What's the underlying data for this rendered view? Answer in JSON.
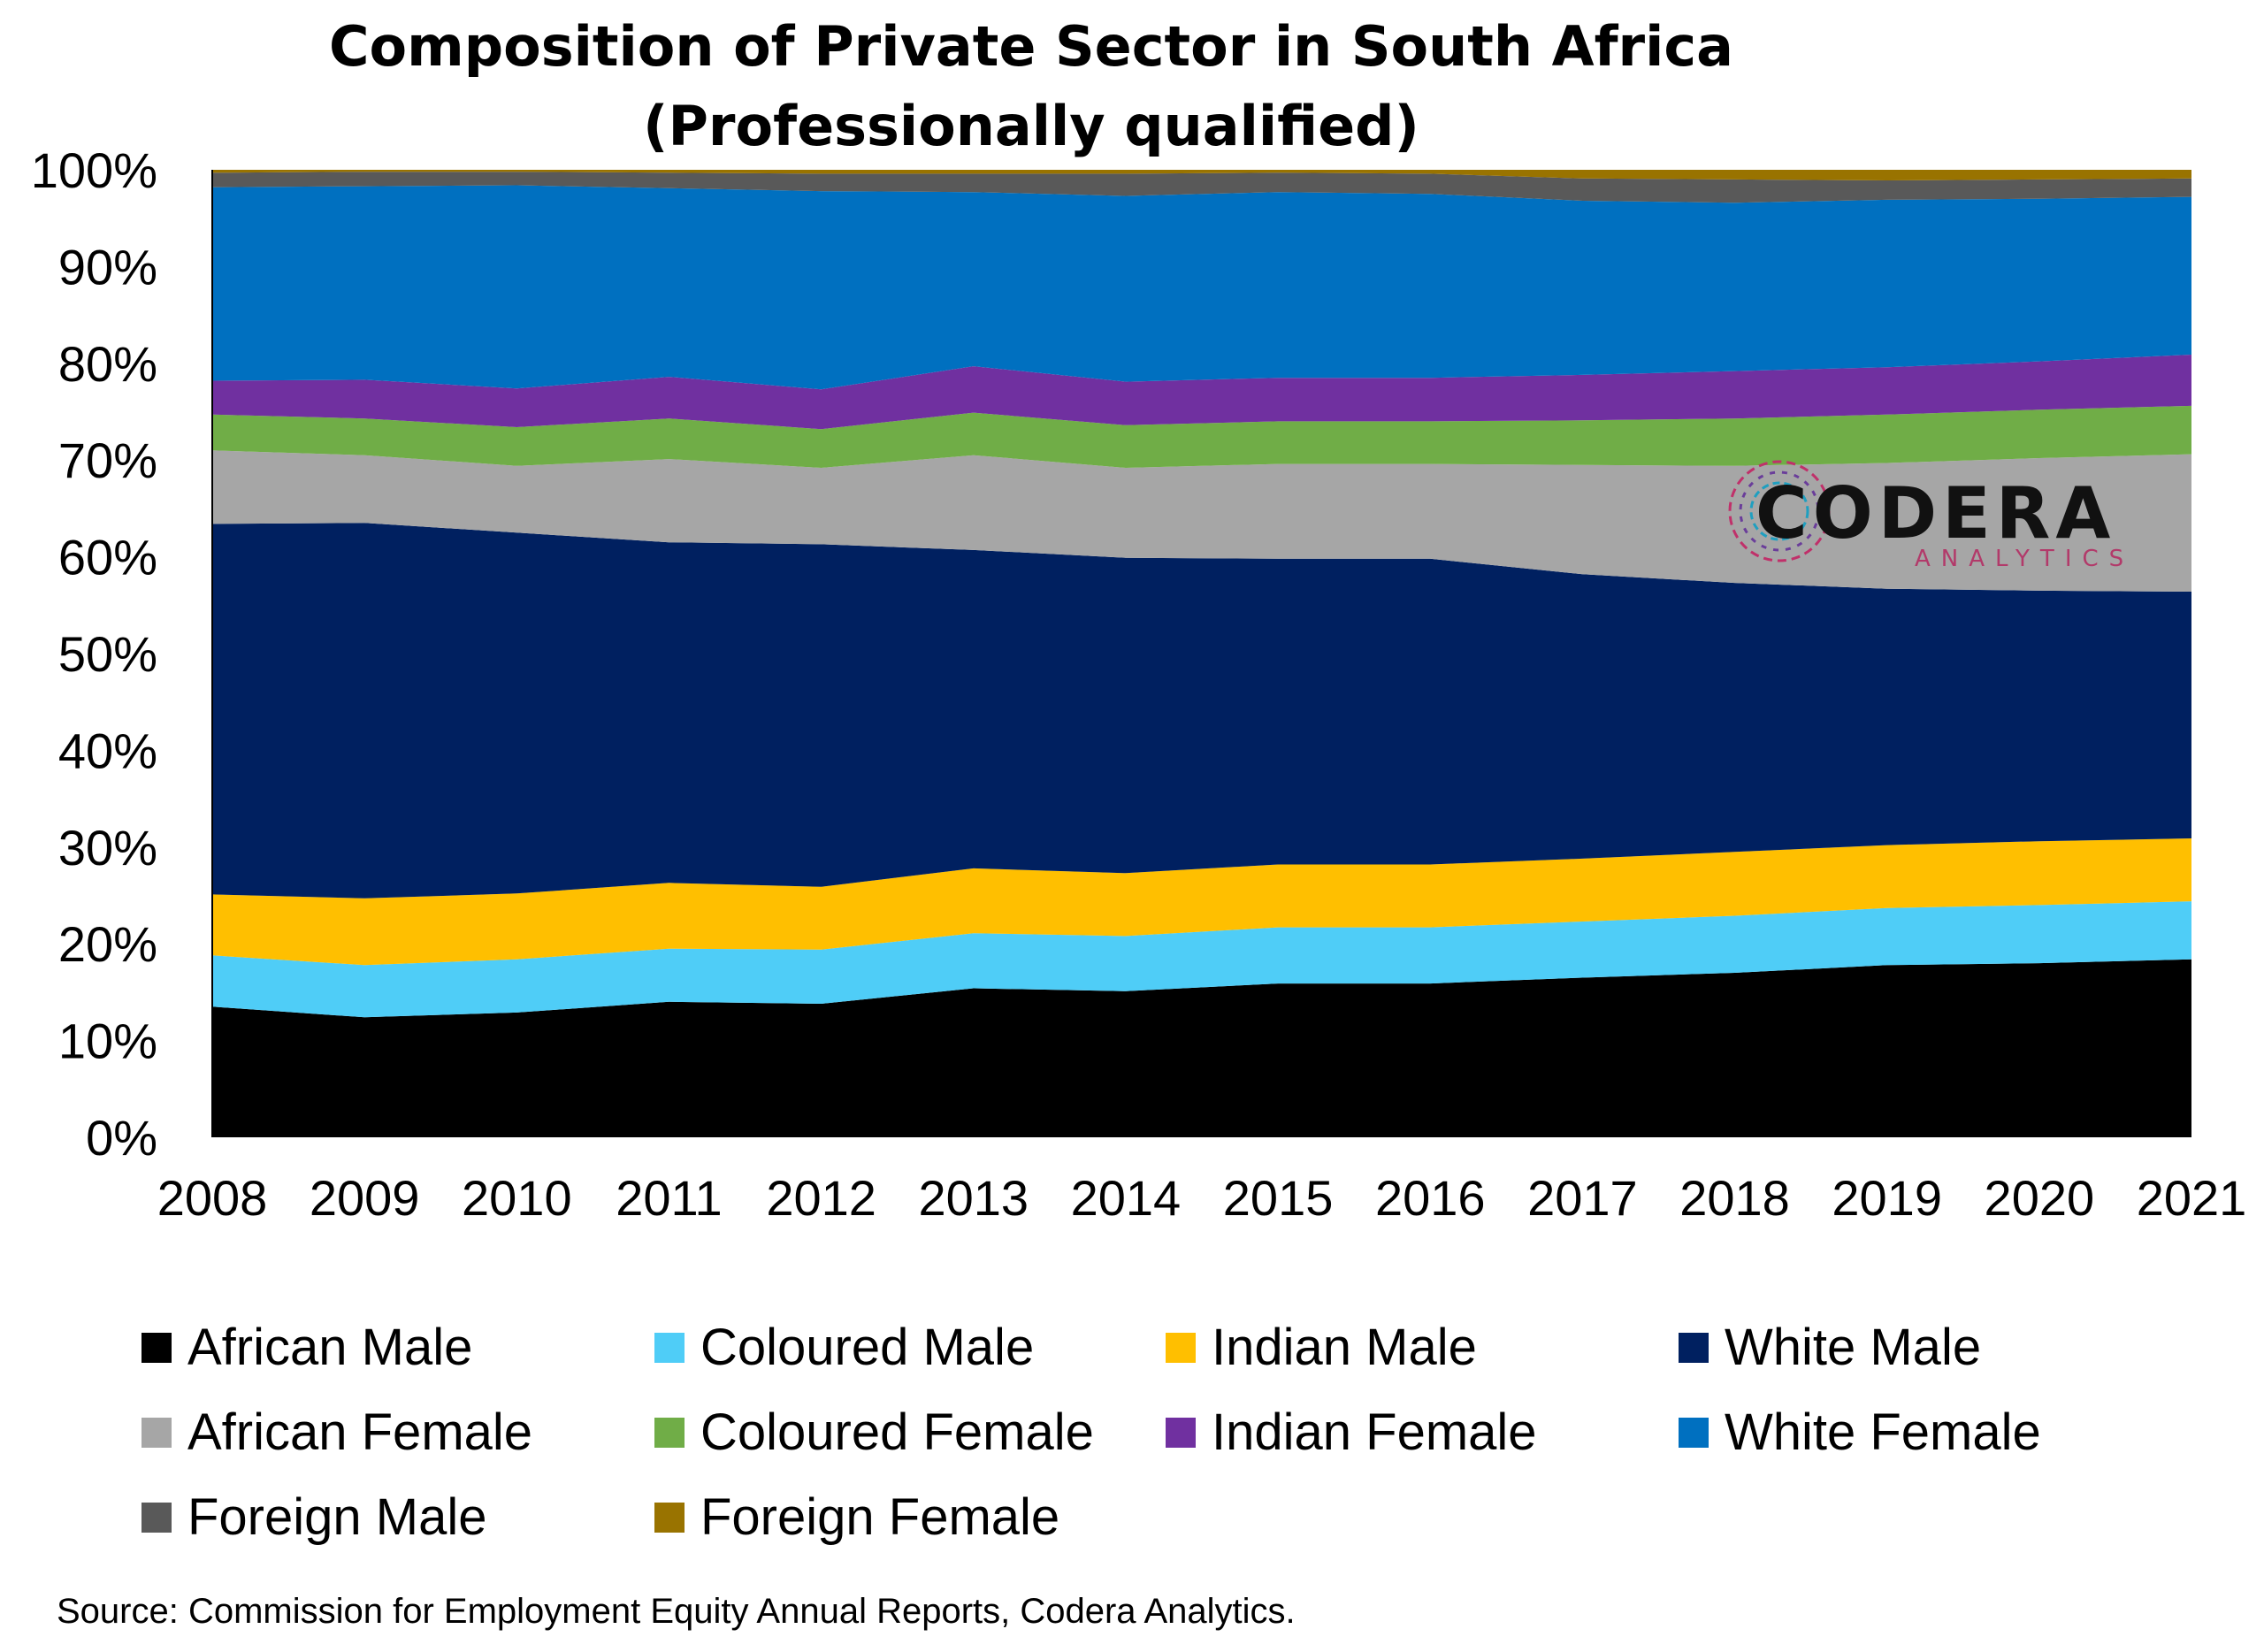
{
  "chart_data": {
    "type": "area",
    "stacked": true,
    "title": "Composition of Private Sector in South Africa",
    "subtitle": "(Professionally qualified)",
    "source": "Source: Commission for Employment Equity Annual Reports, Codera Analytics.",
    "x": [
      "2008",
      "2009",
      "2010",
      "2011",
      "2012",
      "2013",
      "2014",
      "2015",
      "2016",
      "2017",
      "2018",
      "2019",
      "2020",
      "2021"
    ],
    "ylim": [
      0,
      100
    ],
    "yticks": [
      "0%",
      "10%",
      "20%",
      "30%",
      "40%",
      "50%",
      "60%",
      "70%",
      "80%",
      "90%",
      "100%"
    ],
    "legend_position": "bottom",
    "logo": {
      "main": "CODERA",
      "sub": "ANALYTICS"
    },
    "series": [
      {
        "name": "African Male",
        "color": "#000000",
        "values": [
          13.5,
          12.4,
          12.9,
          14.0,
          13.8,
          15.4,
          15.1,
          15.9,
          15.9,
          16.5,
          17.0,
          17.8,
          18.0,
          18.4
        ]
      },
      {
        "name": "Coloured Male",
        "color": "#4fcdf7",
        "values": [
          5.3,
          5.4,
          5.5,
          5.5,
          5.6,
          5.7,
          5.7,
          5.8,
          5.8,
          5.8,
          5.9,
          5.9,
          6.0,
          6.0
        ]
      },
      {
        "name": "Indian Male",
        "color": "#ffbf00",
        "values": [
          6.3,
          6.9,
          6.8,
          6.8,
          6.5,
          6.7,
          6.5,
          6.5,
          6.5,
          6.5,
          6.6,
          6.5,
          6.6,
          6.5
        ]
      },
      {
        "name": "White Male",
        "color": "#002060",
        "values": [
          38.3,
          38.8,
          37.3,
          35.2,
          35.4,
          32.9,
          32.6,
          31.6,
          31.6,
          29.4,
          27.8,
          26.5,
          25.9,
          25.5
        ]
      },
      {
        "name": "African Female",
        "color": "#a6a6a6",
        "values": [
          7.6,
          7.0,
          6.9,
          8.6,
          7.9,
          9.8,
          9.3,
          9.8,
          9.8,
          11.3,
          12.1,
          13.0,
          13.7,
          14.2
        ]
      },
      {
        "name": "Coloured Female",
        "color": "#70ad47",
        "values": [
          3.7,
          3.8,
          4.0,
          4.2,
          4.0,
          4.4,
          4.4,
          4.4,
          4.4,
          4.6,
          4.9,
          5.0,
          5.0,
          5.0
        ]
      },
      {
        "name": "Indian Female",
        "color": "#7030a0",
        "values": [
          3.5,
          4.0,
          4.0,
          4.3,
          4.1,
          4.8,
          4.5,
          4.5,
          4.5,
          4.7,
          4.9,
          4.9,
          5.0,
          5.3
        ]
      },
      {
        "name": "White Female",
        "color": "#0070c0",
        "values": [
          20.0,
          20.0,
          21.0,
          19.5,
          20.5,
          18.0,
          19.2,
          19.2,
          19.0,
          18.0,
          17.4,
          17.3,
          16.8,
          16.3
        ]
      },
      {
        "name": "Foreign Male",
        "color": "#595959",
        "values": [
          1.5,
          1.5,
          1.4,
          1.6,
          1.8,
          1.9,
          2.3,
          2.0,
          2.1,
          2.3,
          2.4,
          2.0,
          2.0,
          1.9
        ]
      },
      {
        "name": "Foreign Female",
        "color": "#997300",
        "values": [
          0.3,
          0.2,
          0.2,
          0.3,
          0.4,
          0.4,
          0.4,
          0.3,
          0.4,
          0.9,
          1.0,
          1.1,
          1.0,
          0.9
        ]
      }
    ]
  }
}
